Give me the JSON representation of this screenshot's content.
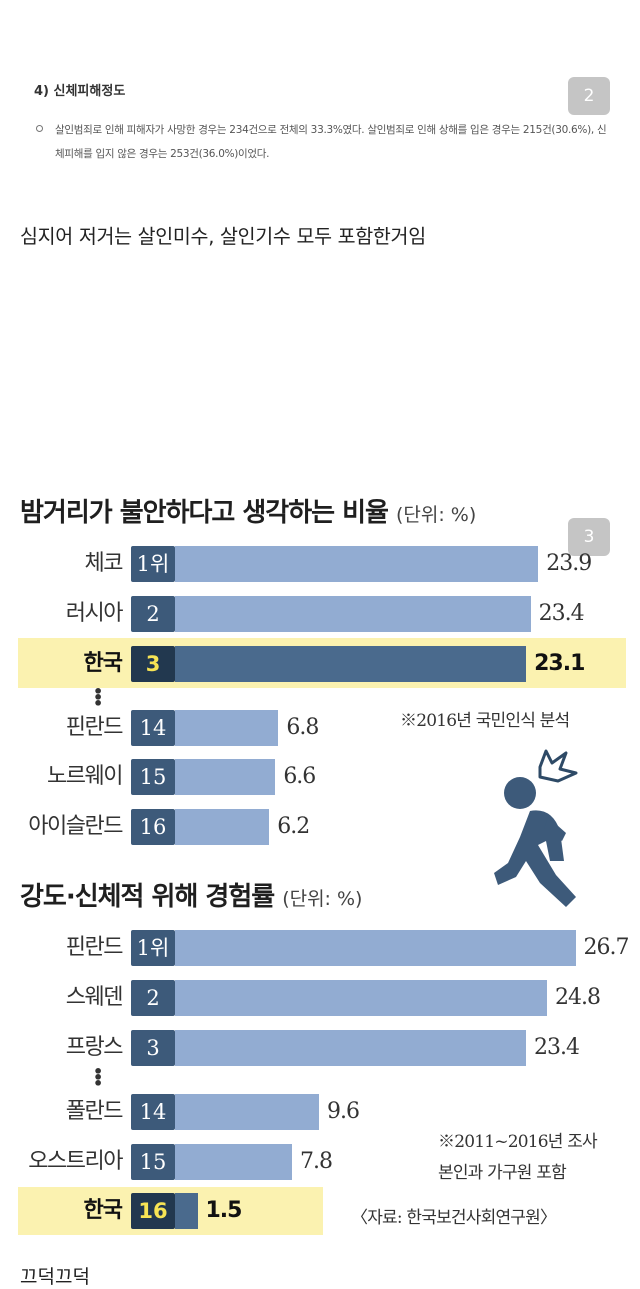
{
  "badges": {
    "first": "2",
    "second": "3"
  },
  "document": {
    "heading": "4) 신체피해정도",
    "paragraph": "살인범죄로 인해 피해자가 사망한 경우는 234건으로 전체의 33.3%였다. 살인범죄로 인해 상해를 입은 경우는 215건(30.6%), 신체피해를 입지 않은 경우는 253건(36.0%)이었다."
  },
  "comment": "심지어 저거는 살인미수, 살인기수 모두 포함한거임",
  "bottom_text": "끄덕끄덕",
  "colors": {
    "bar": "#92acd2",
    "bar_highlight": "#4a6a8d",
    "rank": "#3d5a7a",
    "highlight_bg": "#fbf2b0"
  },
  "icons": {
    "runner": "frightened-runner-icon"
  },
  "chart_data": [
    {
      "type": "bar",
      "orientation": "horizontal",
      "title": "밤거리가 불안하다고 생각하는 비율",
      "unit": "(단위: %)",
      "note": "※2016년 국민인식 분석",
      "xlim": [
        0,
        25
      ],
      "highlight": "한국",
      "ellipsis_after_index": 2,
      "rows": [
        {
          "country": "체코",
          "rank": "1위",
          "value": 23.9
        },
        {
          "country": "러시아",
          "rank": "2",
          "value": 23.4
        },
        {
          "country": "한국",
          "rank": "3",
          "value": 23.1
        },
        {
          "country": "핀란드",
          "rank": "14",
          "value": 6.8
        },
        {
          "country": "노르웨이",
          "rank": "15",
          "value": 6.6
        },
        {
          "country": "아이슬란드",
          "rank": "16",
          "value": 6.2
        }
      ]
    },
    {
      "type": "bar",
      "orientation": "horizontal",
      "title": "강도·신체적 위해 경험률",
      "unit": "(단위: %)",
      "notes": [
        "※2011~2016년 조사",
        "본인과 가구원 포함"
      ],
      "source": "〈자료: 한국보건사회연구원〉",
      "xlim": [
        0,
        28
      ],
      "highlight": "한국",
      "ellipsis_after_index": 2,
      "rows": [
        {
          "country": "핀란드",
          "rank": "1위",
          "value": 26.7
        },
        {
          "country": "스웨덴",
          "rank": "2",
          "value": 24.8
        },
        {
          "country": "프랑스",
          "rank": "3",
          "value": 23.4
        },
        {
          "country": "폴란드",
          "rank": "14",
          "value": 9.6
        },
        {
          "country": "오스트리아",
          "rank": "15",
          "value": 7.8
        },
        {
          "country": "한국",
          "rank": "16",
          "value": 1.5
        }
      ]
    }
  ]
}
